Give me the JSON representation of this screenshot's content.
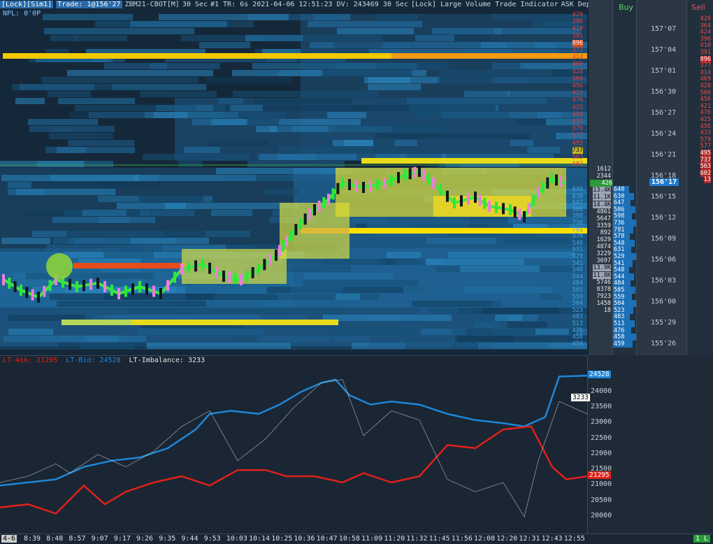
{
  "topbar": {
    "lock_sim": "[Lock][Sim1]",
    "trade": "Trade: 1@156'27",
    "instrument": "ZBM21-CBOT[M]",
    "period": "30 Sec",
    "stats": "#1 TR: 6s 2021-04-06 12:51:23 DV: 243469 30 Sec",
    "indicator": "[Lock] Large Volume Trade Indicator",
    "ask_depth": "ASK Depth"
  },
  "npl": "NPL: 0'0P",
  "ladder": {
    "buy_header": "Buy",
    "sell_header": "Sell",
    "prices": [
      "157'07",
      "157'04",
      "157'01",
      "156'30",
      "156'27",
      "156'24",
      "156'21",
      "156'18",
      "156'15",
      "156'12",
      "156'09",
      "156'06",
      "156'03",
      "156'00",
      "155'29",
      "155'26"
    ],
    "current_price": "156'17",
    "ask_depth": [
      "420",
      "396",
      "410",
      "391",
      "896",
      "377",
      "414",
      "469",
      "428",
      "500",
      "456",
      "421",
      "476",
      "425",
      "456",
      "433",
      "579",
      "577",
      "495",
      "737",
      "563"
    ],
    "sell_col": [
      "420",
      "364",
      "424",
      "396",
      "410",
      "391",
      "896",
      "377",
      "414",
      "469",
      "428",
      "500",
      "456",
      "421",
      "476",
      "425",
      "456",
      "433",
      "579",
      "577",
      "495",
      "737",
      "563",
      "602",
      "13"
    ],
    "bid_depth": [
      "640",
      "630",
      "647",
      "586",
      "598",
      "736",
      "791",
      "578",
      "548",
      "631",
      "529",
      "541",
      "548",
      "544",
      "484",
      "585",
      "559",
      "504",
      "523",
      "483",
      "513",
      "476",
      "458",
      "459"
    ],
    "volume_col": [
      "1612",
      "2344",
      "426",
      "13.4K",
      "11.1K",
      "14.4K",
      "4861",
      "5647",
      "3359",
      "892",
      "1629",
      "4874",
      "3229",
      "3697",
      "13.9K",
      "11.8K",
      "5746",
      "8378",
      "7923",
      "1458",
      "18"
    ],
    "buy_col": [
      "640",
      "630",
      "647",
      "586",
      "598",
      "736",
      "791",
      "578",
      "548",
      "631",
      "529",
      "541",
      "548",
      "544",
      "484",
      "585",
      "559",
      "504",
      "523",
      "483",
      "513",
      "476",
      "458",
      "459"
    ]
  },
  "heatmap_labels_right": [
    "420",
    "396",
    "410",
    "391",
    "896",
    "377",
    "414",
    "469",
    "428",
    "500",
    "456",
    "421",
    "476",
    "425",
    "456",
    "433",
    "579",
    "577",
    "495",
    "737",
    "563",
    "602"
  ],
  "oscillator": {
    "legend_ask": "LT-Ask: 21295",
    "legend_bid": "LT-Bid: 24528",
    "legend_imb": "LT-Imbalance: 3233",
    "y_ticks": [
      "24000",
      "23500",
      "23000",
      "22500",
      "22000",
      "21500",
      "21000",
      "20500",
      "20000"
    ],
    "tag_bid": "24528",
    "tag_imb": "3233",
    "tag_ask": "21295",
    "colors": {
      "ask": "#e0201a",
      "bid": "#1e86d8",
      "imbalance": "#d8d8d8"
    }
  },
  "time_axis": {
    "first": "4-6",
    "labels": [
      "8:39",
      "8:48",
      "8:57",
      "9:07",
      "9:17",
      "9:26",
      "9:35",
      "9:44",
      "9:53",
      "10:03",
      "10:14",
      "10:25",
      "10:36",
      "10:47",
      "10:58",
      "11:09",
      "11:20",
      "11:32",
      "11:45",
      "11:56",
      "12:08",
      "12:20",
      "12:31",
      "12:43",
      "12:55"
    ],
    "corner": "1 L"
  }
}
